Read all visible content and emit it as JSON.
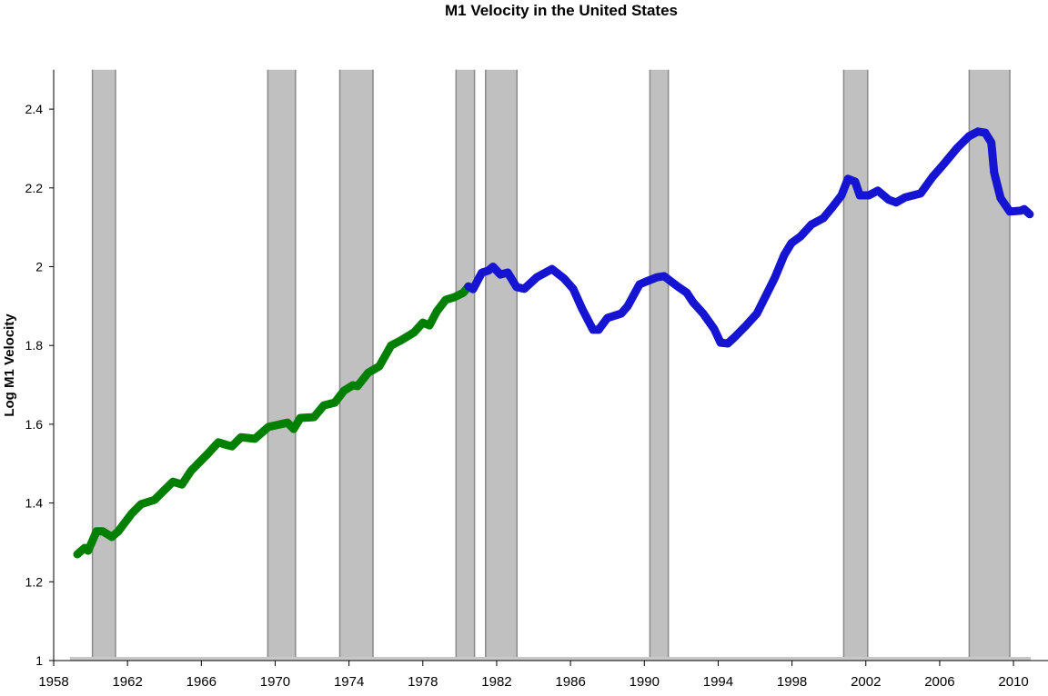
{
  "chart_data": {
    "type": "line",
    "title": "M1 Velocity in the United States",
    "xlabel": "",
    "ylabel": "Log M1 Velocity",
    "xlim": [
      1958,
      2011.9
    ],
    "ylim": [
      1,
      2.5
    ],
    "xticks": [
      1958,
      1962,
      1966,
      1970,
      1974,
      1978,
      1982,
      1986,
      1990,
      1994,
      1998,
      2002,
      2006,
      2010
    ],
    "yticks": [
      1,
      1.2,
      1.4,
      1.6,
      1.8,
      2,
      2.2,
      2.4
    ],
    "ytick_labels": [
      "1",
      "1.2",
      "1.4",
      "1.6",
      "1.8",
      "2",
      "2.2",
      "2.4"
    ],
    "grid": false,
    "legend": "none",
    "recession_shading": {
      "color": "#c0c0c0",
      "periods": [
        [
          1960.1,
          1961.35
        ],
        [
          1969.6,
          1971.1
        ],
        [
          1973.5,
          1975.3
        ],
        [
          1979.8,
          1980.8
        ],
        [
          1981.4,
          1983.1
        ],
        [
          1990.3,
          1991.3
        ],
        [
          2000.8,
          2002.1
        ],
        [
          2007.6,
          2009.8
        ]
      ]
    },
    "series": [
      {
        "color": "#008000",
        "x": [
          1959.28,
          1959.68,
          1959.87,
          1960.32,
          1960.66,
          1961.15,
          1961.5,
          1962.24,
          1962.73,
          1963.47,
          1963.96,
          1964.46,
          1964.95,
          1965.44,
          1966.33,
          1966.92,
          1967.41,
          1967.66,
          1968.15,
          1968.9,
          1969.63,
          1970.67,
          1971.0,
          1971.36,
          1972.1,
          1972.64,
          1973.23,
          1973.72,
          1974.21,
          1974.46,
          1975.05,
          1975.64,
          1976.28,
          1976.78,
          1977.52,
          1978.0,
          1978.36,
          1978.75,
          1979.24,
          1979.73,
          1980.2,
          1980.47
        ],
        "y": [
          1.27,
          1.286,
          1.279,
          1.328,
          1.328,
          1.314,
          1.328,
          1.374,
          1.397,
          1.408,
          1.431,
          1.454,
          1.447,
          1.482,
          1.524,
          1.554,
          1.547,
          1.544,
          1.567,
          1.563,
          1.593,
          1.604,
          1.588,
          1.616,
          1.618,
          1.648,
          1.655,
          1.685,
          1.699,
          1.697,
          1.731,
          1.747,
          1.8,
          1.812,
          1.833,
          1.858,
          1.851,
          1.886,
          1.916,
          1.923,
          1.934,
          1.95
        ]
      },
      {
        "color": "#1414d2",
        "x": [
          1980.47,
          1980.72,
          1981.2,
          1981.56,
          1981.8,
          1982.2,
          1982.6,
          1983.08,
          1983.5,
          1984.17,
          1985.0,
          1985.65,
          1986.14,
          1986.63,
          1987.22,
          1987.52,
          1988.0,
          1988.75,
          1989.1,
          1989.74,
          1990.08,
          1990.68,
          1991.07,
          1991.8,
          1992.3,
          1992.65,
          1993.19,
          1993.78,
          1994.13,
          1994.52,
          1994.87,
          1995.5,
          1996.1,
          1996.59,
          1997.08,
          1997.58,
          1997.97,
          1998.47,
          1999.05,
          1999.69,
          2000.19,
          2000.68,
          2001.03,
          2001.42,
          2001.67,
          2002.16,
          2002.65,
          2003.24,
          2003.64,
          2004.13,
          2004.97,
          2005.6,
          2006.25,
          2006.94,
          2007.58,
          2008.07,
          2008.47,
          2008.8,
          2008.95,
          2009.3,
          2009.8,
          2010.39,
          2010.58,
          2010.88
        ],
        "y": [
          1.95,
          1.943,
          1.985,
          1.99,
          2.0,
          1.98,
          1.985,
          1.948,
          1.944,
          1.973,
          1.994,
          1.97,
          1.944,
          1.893,
          1.84,
          1.84,
          1.87,
          1.881,
          1.9,
          1.955,
          1.962,
          1.973,
          1.976,
          1.95,
          1.934,
          1.909,
          1.881,
          1.842,
          1.807,
          1.805,
          1.82,
          1.85,
          1.881,
          1.927,
          1.973,
          2.03,
          2.06,
          2.077,
          2.107,
          2.123,
          2.151,
          2.181,
          2.223,
          2.216,
          2.181,
          2.181,
          2.193,
          2.17,
          2.163,
          2.176,
          2.186,
          2.227,
          2.262,
          2.301,
          2.331,
          2.343,
          2.34,
          2.315,
          2.239,
          2.174,
          2.14,
          2.142,
          2.146,
          2.133
        ]
      }
    ]
  }
}
